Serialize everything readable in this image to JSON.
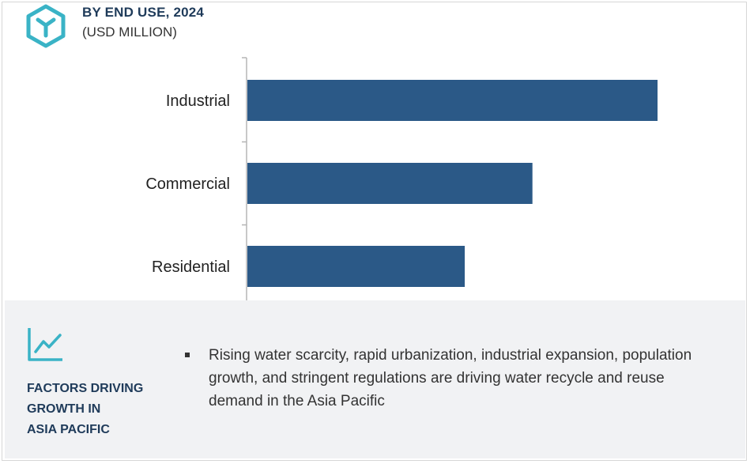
{
  "header": {
    "title": "BY END USE, 2024",
    "subtitle": "(USD MILLION)",
    "logo_icon": "hexagon-y-logo-icon"
  },
  "chart_data": {
    "type": "bar",
    "orientation": "horizontal",
    "title": "BY END USE, 2024",
    "subtitle": "(USD MILLION)",
    "categories": [
      "Industrial",
      "Commercial",
      "Residential"
    ],
    "values": [
      100,
      69.5,
      53
    ],
    "value_scale": "relative (no axis ticks printed)",
    "bar_color": "#2b5987",
    "axis_color": "#b5b5b5",
    "grid": false,
    "legend": "none"
  },
  "footer": {
    "icon": "trend-line-chart-icon",
    "heading_lines": [
      "FACTORS DRIVING",
      "GROWTH IN",
      "ASIA PACIFIC"
    ],
    "bullets": [
      "Rising water scarcity, rapid urbanization, industrial expansion, population growth, and stringent regulations are  driving water recycle and reuse demand in the Asia Pacific"
    ],
    "background": "#f1f2f4",
    "accent_color": "#3ab3c6"
  }
}
